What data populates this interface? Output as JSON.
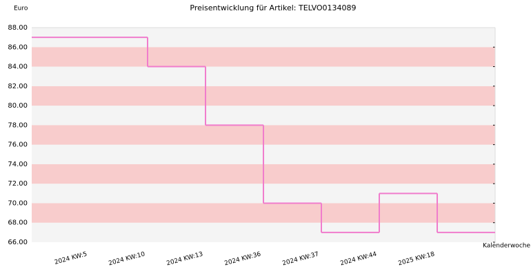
{
  "chart_data": {
    "type": "step",
    "title": "Preisentwicklung für Artikel: TELVO0134089",
    "y_label": "Euro",
    "x_label": "Kalenderwoche",
    "categories": [
      "2024 KW:5",
      "2024 KW:10",
      "2024 KW:13",
      "2024 KW:36",
      "2024 KW:37",
      "2024 KW:44",
      "2025 KW:18"
    ],
    "values": [
      87,
      84,
      78,
      70,
      67,
      71,
      67
    ],
    "color": "#f07ccc",
    "band_colors": [
      "#f4f4f4",
      "#f8cccc"
    ],
    "ylim": [
      66,
      88
    ],
    "yticks": [
      {
        "value": 66,
        "label": "66.00"
      },
      {
        "value": 68,
        "label": "68.00"
      },
      {
        "value": 70,
        "label": "70.00"
      },
      {
        "value": 72,
        "label": "72.00"
      },
      {
        "value": 74,
        "label": "74.00"
      },
      {
        "value": 76,
        "label": "76.00"
      },
      {
        "value": 78,
        "label": "78.00"
      },
      {
        "value": 80,
        "label": "80.00"
      },
      {
        "value": 82,
        "label": "82.00"
      },
      {
        "value": 84,
        "label": "84.00"
      },
      {
        "value": 86,
        "label": "86.00"
      },
      {
        "value": 88,
        "label": "88.00"
      }
    ]
  }
}
